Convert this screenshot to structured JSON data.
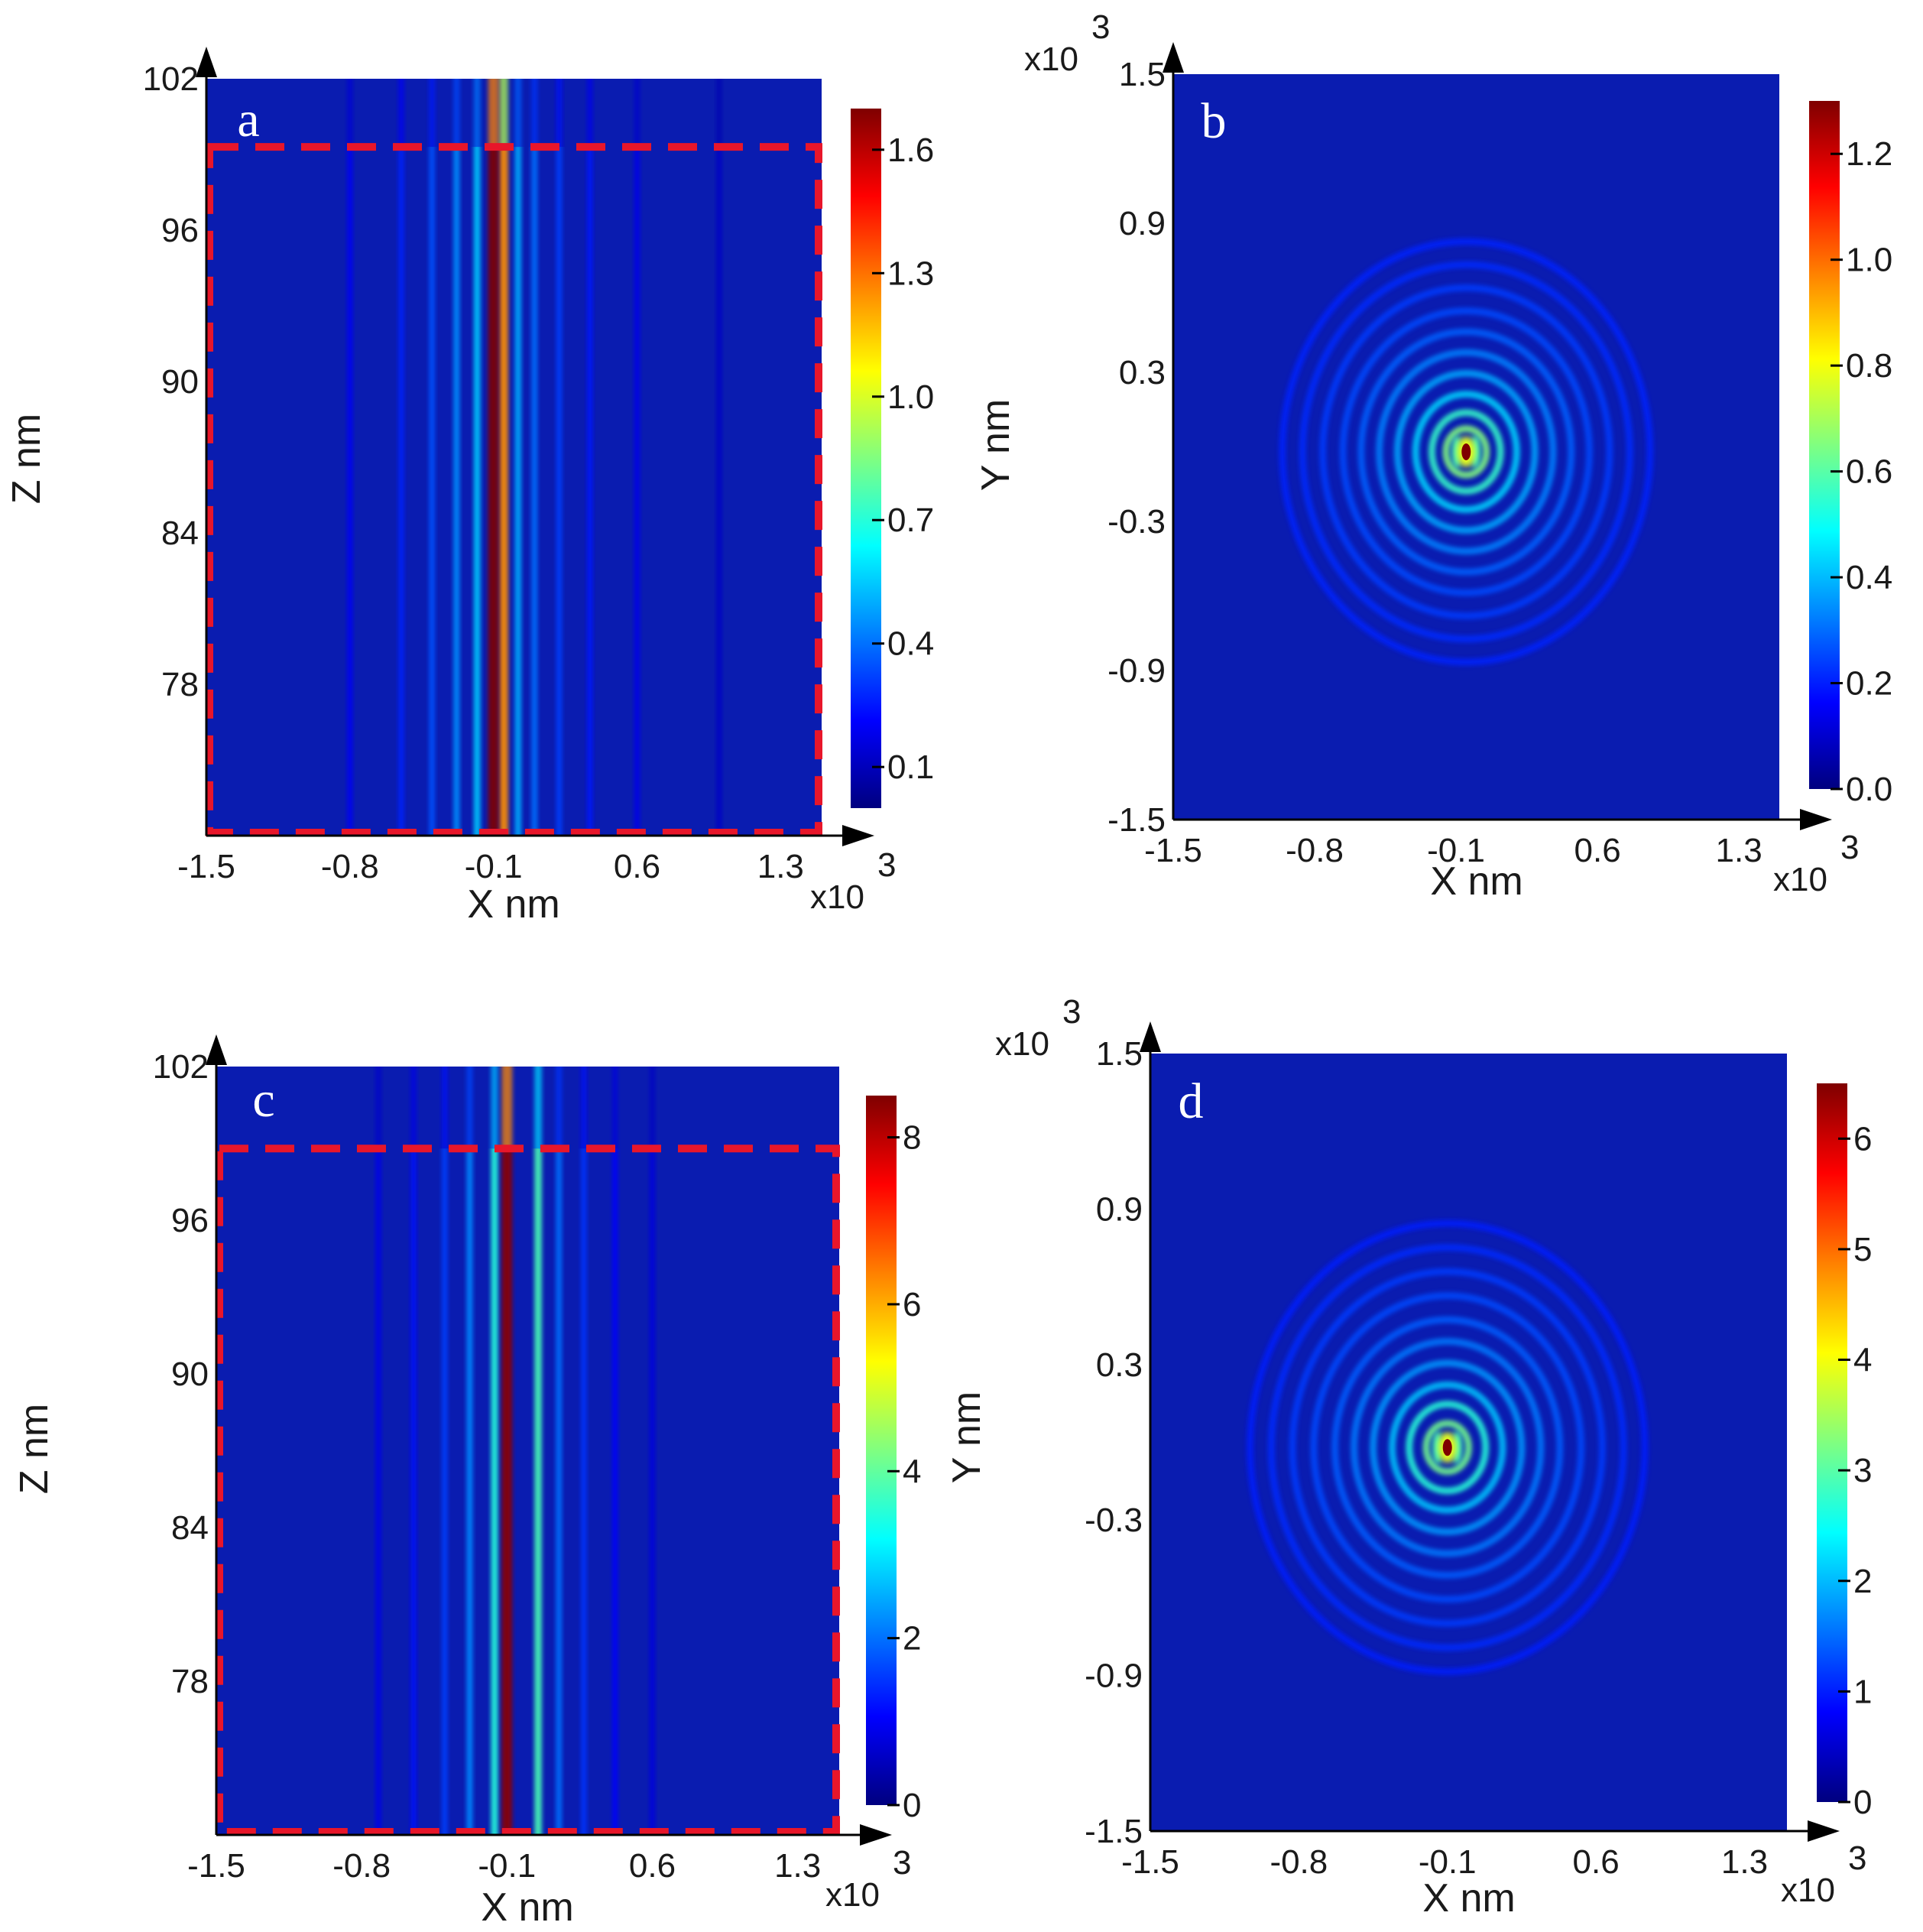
{
  "colormap": [
    "#00007f",
    "#0000ff",
    "#0080ff",
    "#00ffff",
    "#80ff80",
    "#ffff00",
    "#ff8000",
    "#ff0000",
    "#7f0000"
  ],
  "background_color": "#0a1cb0",
  "dashed_box_color": "#e8162a",
  "chart_data": [
    {
      "panel": "a",
      "type": "heatmap",
      "description_kind": "side-view",
      "xlabel": "X nm",
      "ylabel": "Z nm",
      "xlim": [
        -1.5,
        1.5
      ],
      "ylim": [
        72,
        102
      ],
      "x_multiplier": "x10",
      "x_multiplier_exp": "3",
      "xticks": [
        "-1.5",
        "-0.8",
        "-0.1",
        "0.6",
        "1.3"
      ],
      "xtick_values": [
        -1.5,
        -0.8,
        -0.1,
        0.6,
        1.3
      ],
      "yticks": [
        "78",
        "84",
        "90",
        "96",
        "102"
      ],
      "ytick_values": [
        78,
        84,
        90,
        96,
        102
      ],
      "colorbar": {
        "min": 0,
        "max": 1.7,
        "ticks": [
          "0.1",
          "0.4",
          "0.7",
          "1.0",
          "1.3",
          "1.6"
        ],
        "tick_values": [
          0.1,
          0.4,
          0.7,
          1.0,
          1.3,
          1.6
        ]
      },
      "dashed_region": {
        "x": [
          -1.5,
          1.5
        ],
        "z": [
          72,
          99.3
        ]
      },
      "stripes": [
        {
          "x": -0.1,
          "intensity": 1.7
        },
        {
          "x": -0.05,
          "intensity": 1.25
        },
        {
          "x": -0.18,
          "intensity": 0.55
        },
        {
          "x": 0.02,
          "intensity": 0.5
        },
        {
          "x": -0.28,
          "intensity": 0.45
        },
        {
          "x": 0.1,
          "intensity": 0.4
        },
        {
          "x": -0.4,
          "intensity": 0.35
        },
        {
          "x": 0.22,
          "intensity": 0.32
        },
        {
          "x": -0.55,
          "intensity": 0.27
        },
        {
          "x": 0.37,
          "intensity": 0.25
        },
        {
          "x": -0.8,
          "intensity": 0.2
        },
        {
          "x": 0.6,
          "intensity": 0.18
        },
        {
          "x": 1.0,
          "intensity": 0.12
        }
      ]
    },
    {
      "panel": "b",
      "type": "heatmap",
      "description_kind": "top-view",
      "xlabel": "X nm",
      "ylabel": "Y nm",
      "xlim": [
        -1.5,
        1.5
      ],
      "ylim": [
        -1.5,
        1.5
      ],
      "x_multiplier": "x10",
      "x_multiplier_exp": "3",
      "y_multiplier": "x10",
      "y_multiplier_exp": "3",
      "xticks": [
        "-1.5",
        "-0.8",
        "-0.1",
        "0.6",
        "1.3"
      ],
      "xtick_values": [
        -1.5,
        -0.8,
        -0.1,
        0.6,
        1.3
      ],
      "yticks": [
        "-1.5",
        "-0.9",
        "-0.3",
        "0.3",
        "0.9",
        "1.5"
      ],
      "ytick_values": [
        -1.5,
        -0.9,
        -0.3,
        0.3,
        0.9,
        1.5
      ],
      "colorbar": {
        "min": 0,
        "max": 1.3,
        "ticks": [
          "0.0",
          "0.2",
          "0.4",
          "0.6",
          "0.8",
          "1.0",
          "1.2"
        ],
        "tick_values": [
          0.0,
          0.2,
          0.4,
          0.6,
          0.8,
          1.0,
          1.2
        ]
      },
      "center": {
        "x": -0.05,
        "y": -0.02
      },
      "peak_intensity": 1.3,
      "rings": [
        {
          "r": 0.1,
          "intensity": 0.5
        },
        {
          "r": 0.17,
          "intensity": 0.4
        },
        {
          "r": 0.25,
          "intensity": 0.28
        },
        {
          "r": 0.34,
          "intensity": 0.22
        },
        {
          "r": 0.43,
          "intensity": 0.17
        },
        {
          "r": 0.52,
          "intensity": 0.13
        },
        {
          "r": 0.61,
          "intensity": 0.1
        },
        {
          "r": 0.71,
          "intensity": 0.08
        },
        {
          "r": 0.81,
          "intensity": 0.06
        },
        {
          "r": 0.91,
          "intensity": 0.05
        }
      ]
    },
    {
      "panel": "c",
      "type": "heatmap",
      "description_kind": "side-view",
      "xlabel": "X nm",
      "ylabel": "Z nm",
      "xlim": [
        -1.5,
        1.5
      ],
      "ylim": [
        72,
        102
      ],
      "x_multiplier": "x10",
      "x_multiplier_exp": "3",
      "xticks": [
        "-1.5",
        "-0.8",
        "-0.1",
        "0.6",
        "1.3"
      ],
      "xtick_values": [
        -1.5,
        -0.8,
        -0.1,
        0.6,
        1.3
      ],
      "yticks": [
        "78",
        "84",
        "90",
        "96",
        "102"
      ],
      "ytick_values": [
        78,
        84,
        90,
        96,
        102
      ],
      "colorbar": {
        "min": 0,
        "max": 8.5,
        "ticks": [
          "0",
          "2",
          "4",
          "6",
          "8"
        ],
        "tick_values": [
          0,
          2,
          4,
          6,
          8
        ]
      },
      "dashed_region": {
        "x": [
          -1.5,
          1.5
        ],
        "z": [
          72,
          98.8
        ]
      },
      "stripes": [
        {
          "x": -0.1,
          "intensity": 8.4
        },
        {
          "x": -0.16,
          "intensity": 3.5
        },
        {
          "x": 0.05,
          "intensity": 3.8
        },
        {
          "x": -0.28,
          "intensity": 2.2
        },
        {
          "x": 0.15,
          "intensity": 2.0
        },
        {
          "x": -0.4,
          "intensity": 1.6
        },
        {
          "x": 0.27,
          "intensity": 1.5
        },
        {
          "x": -0.55,
          "intensity": 1.2
        },
        {
          "x": 0.42,
          "intensity": 1.1
        },
        {
          "x": -0.72,
          "intensity": 0.9
        },
        {
          "x": 0.6,
          "intensity": 0.8
        }
      ]
    },
    {
      "panel": "d",
      "type": "heatmap",
      "description_kind": "top-view",
      "xlabel": "X nm",
      "ylabel": "Y nm",
      "xlim": [
        -1.5,
        1.5
      ],
      "ylim": [
        -1.5,
        1.5
      ],
      "x_multiplier": "x10",
      "x_multiplier_exp": "3",
      "y_multiplier": "x10",
      "y_multiplier_exp": "3",
      "xticks": [
        "-1.5",
        "-0.8",
        "-0.1",
        "0.6",
        "1.3"
      ],
      "xtick_values": [
        -1.5,
        -0.8,
        -0.1,
        0.6,
        1.3
      ],
      "yticks": [
        "-1.5",
        "-0.9",
        "-0.3",
        "0.3",
        "0.9",
        "1.5"
      ],
      "ytick_values": [
        -1.5,
        -0.9,
        -0.3,
        0.3,
        0.9,
        1.5
      ],
      "colorbar": {
        "min": 0,
        "max": 6.5,
        "ticks": [
          "0",
          "1",
          "2",
          "3",
          "4",
          "5",
          "6"
        ],
        "tick_values": [
          0,
          1,
          2,
          3,
          4,
          5,
          6
        ]
      },
      "center": {
        "x": -0.1,
        "y": -0.02
      },
      "peak_intensity": 6.5,
      "rings": [
        {
          "r": 0.1,
          "intensity": 2.4
        },
        {
          "r": 0.18,
          "intensity": 1.9
        },
        {
          "r": 0.26,
          "intensity": 1.3
        },
        {
          "r": 0.35,
          "intensity": 1.0
        },
        {
          "r": 0.44,
          "intensity": 0.8
        },
        {
          "r": 0.53,
          "intensity": 0.62
        },
        {
          "r": 0.63,
          "intensity": 0.5
        },
        {
          "r": 0.73,
          "intensity": 0.4
        },
        {
          "r": 0.83,
          "intensity": 0.3
        },
        {
          "r": 0.93,
          "intensity": 0.22
        }
      ]
    }
  ]
}
